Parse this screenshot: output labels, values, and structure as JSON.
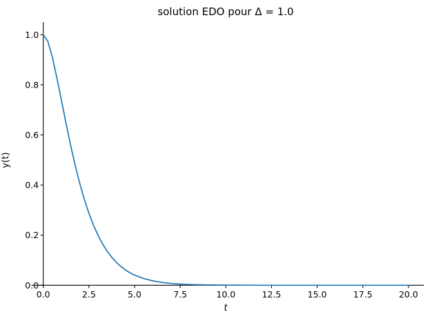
{
  "figure": {
    "background": "#ffffff"
  },
  "chart_data": {
    "type": "line",
    "title": "solution EDO pour Δ = 1.0",
    "xlabel": "t",
    "ylabel": "y(t)",
    "xlim": [
      -0.65,
      20.85
    ],
    "ylim": [
      0,
      1.05
    ],
    "xtick_labels": [
      "0.0",
      "2.5",
      "5.0",
      "7.5",
      "10.0",
      "12.5",
      "15.0",
      "17.5",
      "20.0"
    ],
    "ytick_labels": [
      "0.0",
      "0.2",
      "0.4",
      "0.6",
      "0.8",
      "1.0"
    ],
    "grid": false,
    "legend": false,
    "axis_color": "#000000",
    "text_color": "#000000",
    "series": [
      {
        "name": "y(t)",
        "color": "#1f77b4",
        "x": [
          0,
          0.25,
          0.5,
          0.75,
          1,
          1.25,
          1.5,
          1.75,
          2,
          2.25,
          2.5,
          2.75,
          3,
          3.25,
          3.5,
          3.75,
          4,
          4.25,
          4.5,
          4.75,
          5,
          5.5,
          6,
          6.5,
          7,
          7.5,
          8,
          8.5,
          9,
          9.5,
          10,
          11,
          12,
          13,
          14,
          15,
          16,
          17,
          18,
          19,
          20
        ],
        "y": [
          1.0,
          0.9735,
          0.9098,
          0.8266,
          0.7358,
          0.6446,
          0.5578,
          0.4779,
          0.406,
          0.3426,
          0.2873,
          0.2397,
          0.1991,
          0.1648,
          0.1359,
          0.1117,
          0.0916,
          0.0749,
          0.0611,
          0.0497,
          0.0404,
          0.0266,
          0.0174,
          0.0113,
          0.0073,
          0.0047,
          0.003,
          0.0019,
          0.0012,
          0.0008,
          0.0005,
          0.0002,
          0.0001,
          0.0,
          0.0,
          0.0,
          0.0,
          0.0,
          0.0,
          0.0,
          0.0
        ]
      }
    ]
  }
}
